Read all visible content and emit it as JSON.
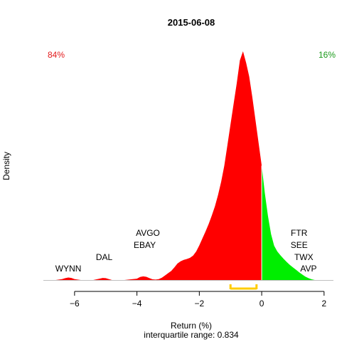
{
  "chart_data": {
    "type": "area",
    "title": "2015-06-08",
    "xlabel": "Return (%)",
    "ylabel": "Density",
    "subtitle": "interquartile range: 0.834",
    "xlim": [
      -7.0,
      2.3
    ],
    "x_ticks": [
      -6,
      -4,
      -2,
      0,
      2
    ],
    "grid": false,
    "left_share": "84%",
    "right_share": "16%",
    "colors": {
      "negative": "#ff0000",
      "positive": "#00ee00",
      "iqr": "#ffcc00",
      "neg_text": "#e31a1c",
      "pos_text": "#1a9a1a"
    },
    "density": {
      "x": [
        -6.6,
        -6.4,
        -6.3,
        -6.2,
        -6.1,
        -6.0,
        -5.8,
        -5.4,
        -5.2,
        -5.1,
        -5.0,
        -4.9,
        -4.8,
        -4.4,
        -4.0,
        -3.9,
        -3.8,
        -3.7,
        -3.6,
        -3.5,
        -3.4,
        -3.3,
        -3.2,
        -3.1,
        -3.0,
        -2.9,
        -2.8,
        -2.7,
        -2.6,
        -2.5,
        -2.4,
        -2.3,
        -2.2,
        -2.1,
        -2.0,
        -1.9,
        -1.8,
        -1.7,
        -1.6,
        -1.5,
        -1.4,
        -1.3,
        -1.2,
        -1.1,
        -1.0,
        -0.9,
        -0.8,
        -0.7,
        -0.6,
        -0.5,
        -0.4,
        -0.3,
        -0.2,
        -0.1,
        0.0,
        0.1,
        0.2,
        0.3,
        0.4,
        0.5,
        0.6,
        0.7,
        0.8,
        0.9,
        1.0,
        1.1,
        1.2,
        1.3,
        1.4,
        1.5,
        1.6,
        1.7
      ],
      "y": [
        0.0,
        0.004,
        0.008,
        0.011,
        0.009,
        0.004,
        0.0,
        0.0,
        0.006,
        0.009,
        0.008,
        0.004,
        0.0,
        0.0,
        0.006,
        0.013,
        0.016,
        0.014,
        0.008,
        0.003,
        0.002,
        0.004,
        0.01,
        0.02,
        0.03,
        0.04,
        0.055,
        0.072,
        0.082,
        0.088,
        0.092,
        0.097,
        0.107,
        0.125,
        0.152,
        0.182,
        0.212,
        0.245,
        0.282,
        0.322,
        0.372,
        0.43,
        0.5,
        0.588,
        0.68,
        0.77,
        0.86,
        0.96,
        1.0,
        0.95,
        0.89,
        0.8,
        0.7,
        0.6,
        0.5,
        0.38,
        0.28,
        0.2,
        0.15,
        0.125,
        0.108,
        0.093,
        0.079,
        0.066,
        0.055,
        0.045,
        0.034,
        0.024,
        0.015,
        0.008,
        0.003,
        0.0
      ]
    },
    "iqr": [
      -1.0,
      -0.166
    ],
    "annotations": [
      {
        "text": "WYNN",
        "x": -6.2,
        "level": 1
      },
      {
        "text": "DAL",
        "x": -5.05,
        "level": 2
      },
      {
        "text": "EBAY",
        "x": -3.75,
        "level": 3
      },
      {
        "text": "AVGO",
        "x": -3.65,
        "level": 4
      },
      {
        "text": "FTR",
        "x": 1.2,
        "level": 4
      },
      {
        "text": "SEE",
        "x": 1.2,
        "level": 3
      },
      {
        "text": "TWX",
        "x": 1.35,
        "level": 2
      },
      {
        "text": "AVP",
        "x": 1.5,
        "level": 1
      }
    ]
  }
}
